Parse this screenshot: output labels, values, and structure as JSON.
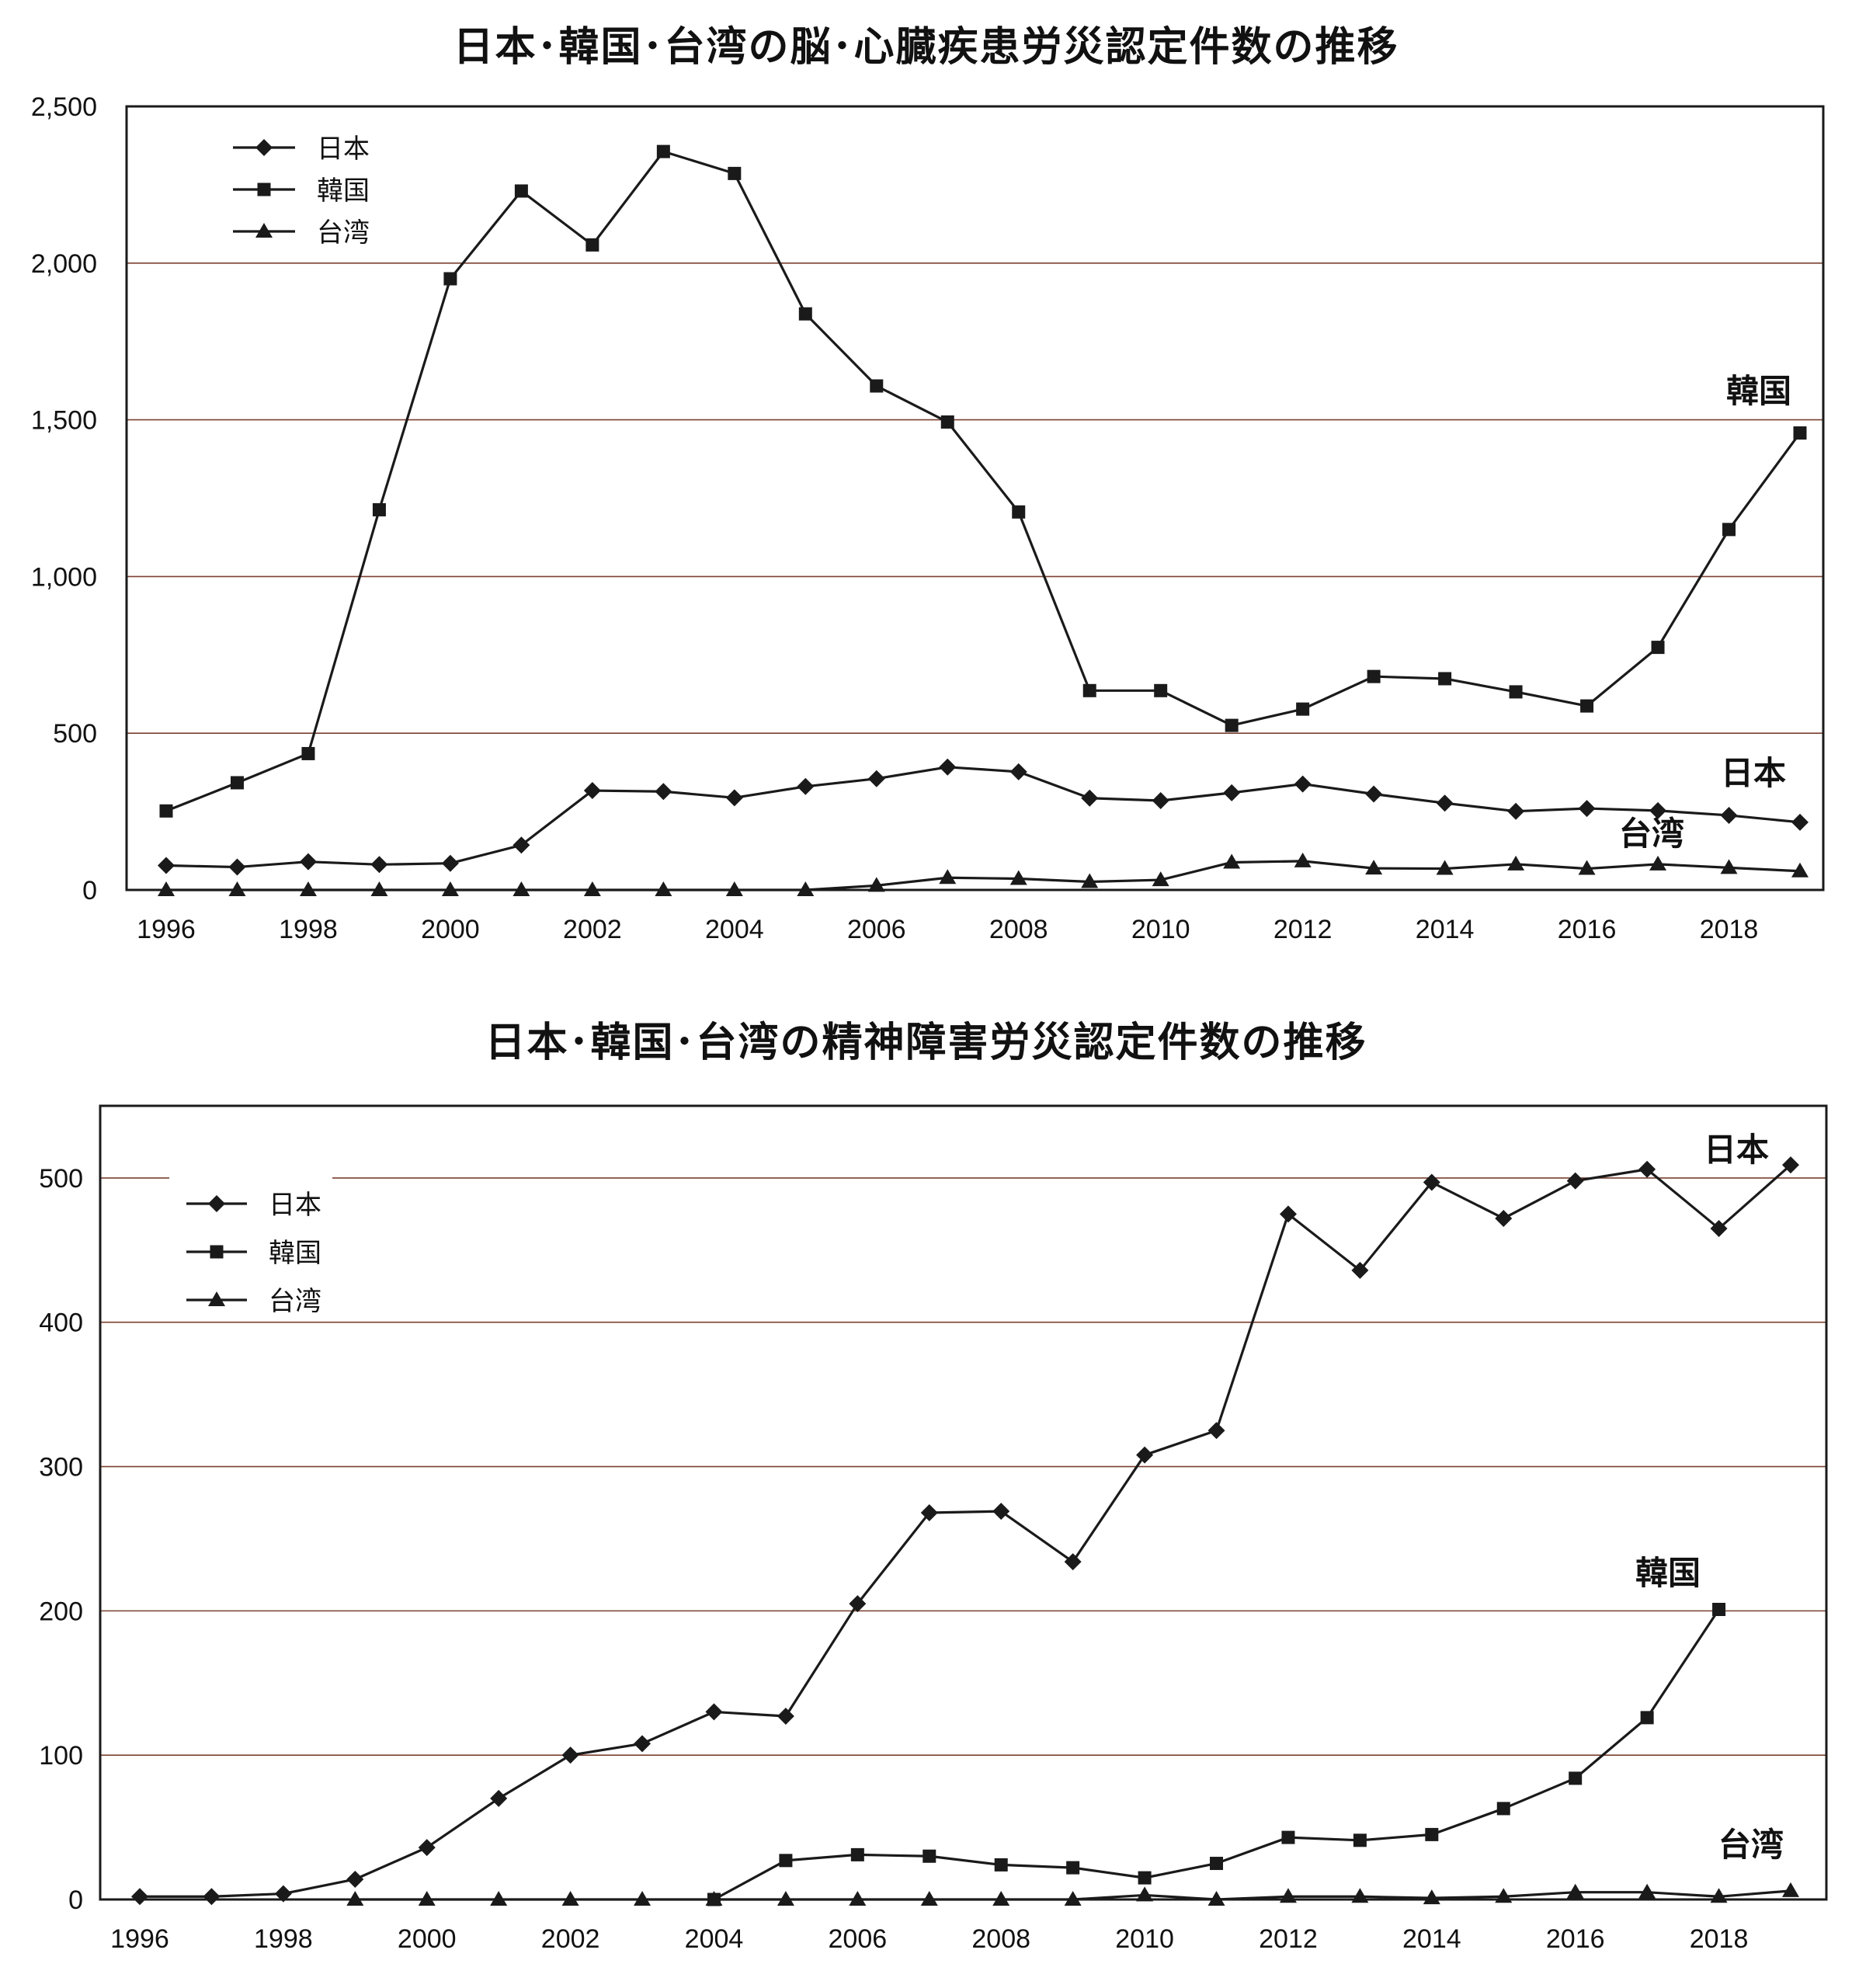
{
  "chart_data": [
    {
      "type": "line",
      "title": "日本･韓国･台湾の脳･心臓疾患労災認定件数の推移",
      "x": [
        1996,
        1997,
        1998,
        1999,
        2000,
        2001,
        2002,
        2003,
        2004,
        2005,
        2006,
        2007,
        2008,
        2009,
        2010,
        2011,
        2012,
        2013,
        2014,
        2015,
        2016,
        2017,
        2018,
        2019
      ],
      "xticks": [
        1996,
        1998,
        2000,
        2002,
        2004,
        2006,
        2008,
        2010,
        2012,
        2014,
        2016,
        2018
      ],
      "ylim": [
        0,
        2500
      ],
      "yticks": [
        0,
        500,
        1000,
        1500,
        2000,
        2500
      ],
      "ytick_labels": [
        "0",
        "500",
        "1,000",
        "1,500",
        "2,000",
        "2,500"
      ],
      "grid": true,
      "legend_position": "top-left",
      "series": [
        {
          "name": "日本",
          "marker": "diamond",
          "values": [
            78,
            73,
            90,
            81,
            85,
            143,
            317,
            314,
            294,
            330,
            355,
            392,
            377,
            293,
            285,
            310,
            338,
            306,
            277,
            251,
            260,
            253,
            238,
            216
          ]
        },
        {
          "name": "韓国",
          "marker": "square",
          "values": [
            252,
            342,
            435,
            1213,
            1950,
            2230,
            2058,
            2356,
            2286,
            1838,
            1608,
            1493,
            1206,
            636,
            636,
            525,
            577,
            681,
            674,
            632,
            587,
            774,
            1150,
            1458
          ]
        },
        {
          "name": "台湾",
          "marker": "triangle",
          "values": [
            0,
            0,
            0,
            0,
            0,
            0,
            0,
            0,
            0,
            0,
            14,
            39,
            36,
            26,
            32,
            88,
            92,
            69,
            68,
            82,
            68,
            82,
            71,
            60
          ]
        }
      ],
      "annotations": [
        "韓国",
        "日本",
        "台湾"
      ]
    },
    {
      "type": "line",
      "title": "日本･韓国･台湾の精神障害労災認定件数の推移",
      "x": [
        1996,
        1997,
        1998,
        1999,
        2000,
        2001,
        2002,
        2003,
        2004,
        2005,
        2006,
        2007,
        2008,
        2009,
        2010,
        2011,
        2012,
        2013,
        2014,
        2015,
        2016,
        2017,
        2018,
        2019
      ],
      "xticks": [
        1996,
        1998,
        2000,
        2002,
        2004,
        2006,
        2008,
        2010,
        2012,
        2014,
        2016,
        2018
      ],
      "ylim": [
        0,
        550
      ],
      "yticks": [
        0,
        100,
        200,
        300,
        400,
        500
      ],
      "ytick_labels": [
        "0",
        "100",
        "200",
        "300",
        "400",
        "500"
      ],
      "grid": true,
      "legend_position": "top-left",
      "series": [
        {
          "name": "日本",
          "marker": "diamond",
          "values": [
            2,
            2,
            4,
            14,
            36,
            70,
            100,
            108,
            130,
            127,
            205,
            268,
            269,
            234,
            308,
            325,
            475,
            436,
            497,
            472,
            498,
            506,
            465,
            509
          ]
        },
        {
          "name": "韓国",
          "marker": "square",
          "values": [
            null,
            null,
            null,
            null,
            null,
            null,
            null,
            null,
            0,
            27,
            31,
            30,
            24,
            22,
            15,
            25,
            43,
            41,
            45,
            63,
            84,
            126,
            201,
            null
          ]
        },
        {
          "name": "台湾",
          "marker": "triangle",
          "values": [
            null,
            null,
            null,
            0,
            0,
            0,
            0,
            0,
            0,
            0,
            0,
            0,
            0,
            0,
            3,
            0,
            2,
            2,
            1,
            2,
            5,
            5,
            2,
            6
          ]
        }
      ],
      "annotations": [
        "日本",
        "韓国",
        "台湾"
      ]
    }
  ]
}
